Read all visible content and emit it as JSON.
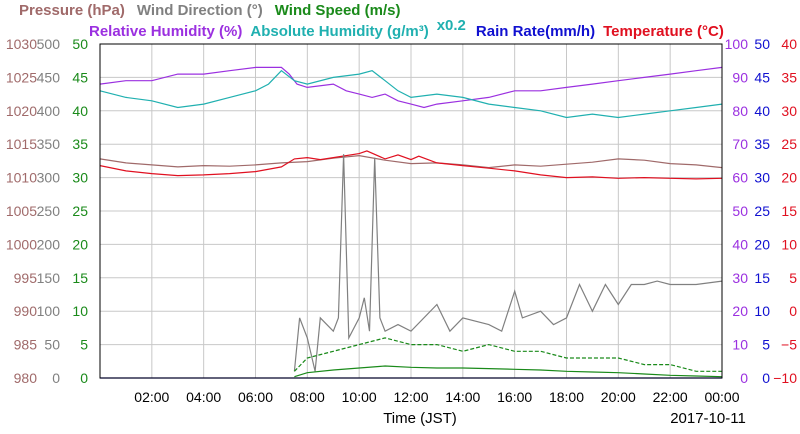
{
  "chart_data": {
    "type": "line",
    "date": "2017-10-11",
    "xlabel": "Time (JST)",
    "x_range_hours": [
      0,
      24
    ],
    "x_ticks": [
      "02:00",
      "04:00",
      "06:00",
      "08:00",
      "10:00",
      "12:00",
      "14:00",
      "16:00",
      "18:00",
      "20:00",
      "22:00",
      "00:00"
    ],
    "grid": true,
    "legend_row1": [
      {
        "text": "Pressure (hPa)",
        "color": "#a06a6a"
      },
      {
        "text": "Wind Direction (°)",
        "color": "#808080"
      },
      {
        "text": "Wind Speed (m/s)",
        "color": "#1a8a1a"
      }
    ],
    "legend_row2": [
      {
        "text": "Relative Humidity (%)",
        "color": "#9b30e0"
      },
      {
        "text": "Absolute Humidity (g/m³)",
        "color": "#20b0b0"
      },
      {
        "text": "x0.2",
        "color": "#20b0b0"
      },
      {
        "text": "Rain Rate(mm/h)",
        "color": "#1010d0"
      },
      {
        "text": "Temperature (°C)",
        "color": "#e01020"
      }
    ],
    "axes": {
      "pressure": {
        "color": "#a06a6a",
        "range": [
          980,
          1030
        ],
        "ticks": [
          "1030",
          "1025",
          "1020",
          "1015",
          "1010",
          "1005",
          "1000",
          "995",
          "990",
          "985",
          "980"
        ]
      },
      "wind_direction": {
        "color": "#808080",
        "range": [
          0,
          500
        ],
        "ticks": [
          "500",
          "450",
          "400",
          "350",
          "300",
          "250",
          "200",
          "150",
          "100",
          "50",
          "0"
        ]
      },
      "wind_speed": {
        "color": "#1a8a1a",
        "range": [
          0,
          50
        ],
        "ticks": [
          "50",
          "45",
          "40",
          "35",
          "30",
          "25",
          "20",
          "15",
          "10",
          "5",
          "0"
        ]
      },
      "relative_humidity": {
        "color": "#9b30e0",
        "range": [
          0,
          100
        ],
        "ticks": [
          "100",
          "90",
          "80",
          "70",
          "60",
          "50",
          "40",
          "30",
          "20",
          "10",
          "0"
        ]
      },
      "rain_rate": {
        "color": "#1010d0",
        "range": [
          0,
          50
        ],
        "ticks": [
          "50",
          "45",
          "40",
          "35",
          "30",
          "25",
          "20",
          "15",
          "10",
          "5",
          "0"
        ]
      },
      "temperature": {
        "color": "#e01020",
        "range": [
          -10,
          40
        ],
        "ticks": [
          "40",
          "35",
          "30",
          "25",
          "20",
          "15",
          "10",
          "5",
          "0",
          "−5",
          "−10"
        ]
      }
    },
    "series": [
      {
        "key": "pressure",
        "axis": "pressure",
        "color": "#a06a6a",
        "points": [
          [
            0,
            1012.8
          ],
          [
            1,
            1012.2
          ],
          [
            2,
            1011.9
          ],
          [
            3,
            1011.6
          ],
          [
            4,
            1011.8
          ],
          [
            5,
            1011.7
          ],
          [
            6,
            1011.9
          ],
          [
            7,
            1012.2
          ],
          [
            8,
            1012.4
          ],
          [
            9,
            1012.9
          ],
          [
            10,
            1013.3
          ],
          [
            11,
            1012.6
          ],
          [
            12,
            1012.1
          ],
          [
            13,
            1012.2
          ],
          [
            14,
            1011.9
          ],
          [
            15,
            1011.5
          ],
          [
            16,
            1011.9
          ],
          [
            17,
            1011.7
          ],
          [
            18,
            1012.0
          ],
          [
            19,
            1012.3
          ],
          [
            20,
            1012.8
          ],
          [
            21,
            1012.6
          ],
          [
            22,
            1012.1
          ],
          [
            23,
            1011.9
          ],
          [
            24,
            1011.5
          ]
        ]
      },
      {
        "key": "temperature",
        "axis": "temperature",
        "color": "#e01020",
        "points": [
          [
            0,
            21.8
          ],
          [
            1,
            21.0
          ],
          [
            2,
            20.6
          ],
          [
            3,
            20.3
          ],
          [
            4,
            20.4
          ],
          [
            5,
            20.6
          ],
          [
            6,
            20.9
          ],
          [
            7,
            21.6
          ],
          [
            7.5,
            22.8
          ],
          [
            8,
            23.0
          ],
          [
            8.5,
            22.7
          ],
          [
            9,
            23.0
          ],
          [
            10,
            23.6
          ],
          [
            10.3,
            24.0
          ],
          [
            11,
            22.8
          ],
          [
            11.5,
            23.4
          ],
          [
            12,
            22.7
          ],
          [
            12.3,
            23.2
          ],
          [
            13,
            22.2
          ],
          [
            14,
            21.8
          ],
          [
            15,
            21.4
          ],
          [
            16,
            21.0
          ],
          [
            17,
            20.4
          ],
          [
            18,
            20.0
          ],
          [
            19,
            20.1
          ],
          [
            20,
            19.9
          ],
          [
            21,
            20.0
          ],
          [
            22,
            19.9
          ],
          [
            23,
            19.8
          ],
          [
            24,
            19.9
          ]
        ]
      },
      {
        "key": "relative_humidity",
        "axis": "relative_humidity",
        "color": "#9b30e0",
        "points": [
          [
            0,
            88
          ],
          [
            1,
            89
          ],
          [
            2,
            89
          ],
          [
            3,
            91
          ],
          [
            4,
            91
          ],
          [
            5,
            92
          ],
          [
            6,
            93
          ],
          [
            7,
            93
          ],
          [
            7.3,
            91
          ],
          [
            7.6,
            88
          ],
          [
            8,
            87
          ],
          [
            9,
            88
          ],
          [
            9.5,
            86
          ],
          [
            10,
            85
          ],
          [
            10.5,
            84
          ],
          [
            11,
            85
          ],
          [
            11.5,
            83
          ],
          [
            12,
            82
          ],
          [
            12.5,
            81
          ],
          [
            13,
            82
          ],
          [
            14,
            83
          ],
          [
            15,
            84
          ],
          [
            16,
            86
          ],
          [
            17,
            86
          ],
          [
            18,
            87
          ],
          [
            19,
            88
          ],
          [
            20,
            89
          ],
          [
            21,
            90
          ],
          [
            22,
            91
          ],
          [
            23,
            92
          ],
          [
            24,
            93
          ]
        ]
      },
      {
        "key": "absolute_humidity",
        "axis": "relative_humidity",
        "color": "#20b0b0",
        "points": [
          [
            0,
            86
          ],
          [
            1,
            84
          ],
          [
            2,
            83
          ],
          [
            3,
            81
          ],
          [
            4,
            82
          ],
          [
            5,
            84
          ],
          [
            6,
            86
          ],
          [
            6.5,
            88
          ],
          [
            7,
            92
          ],
          [
            7.5,
            89
          ],
          [
            8,
            88
          ],
          [
            9,
            90
          ],
          [
            10,
            91
          ],
          [
            10.5,
            92
          ],
          [
            11,
            89
          ],
          [
            11.5,
            86
          ],
          [
            12,
            84
          ],
          [
            13,
            85
          ],
          [
            14,
            84
          ],
          [
            15,
            82
          ],
          [
            16,
            81
          ],
          [
            17,
            80
          ],
          [
            18,
            78
          ],
          [
            19,
            79
          ],
          [
            20,
            78
          ],
          [
            21,
            79
          ],
          [
            22,
            80
          ],
          [
            23,
            81
          ],
          [
            24,
            82
          ]
        ]
      },
      {
        "key": "wind_direction",
        "axis": "wind_direction",
        "color": "#808080",
        "points": [
          [
            7.5,
            10
          ],
          [
            7.7,
            90
          ],
          [
            8,
            60
          ],
          [
            8.3,
            10
          ],
          [
            8.5,
            90
          ],
          [
            9,
            70
          ],
          [
            9.2,
            90
          ],
          [
            9.4,
            335
          ],
          [
            9.6,
            60
          ],
          [
            10,
            90
          ],
          [
            10.2,
            120
          ],
          [
            10.4,
            70
          ],
          [
            10.6,
            330
          ],
          [
            10.8,
            90
          ],
          [
            11,
            70
          ],
          [
            11.5,
            80
          ],
          [
            12,
            70
          ],
          [
            13,
            110
          ],
          [
            13.5,
            70
          ],
          [
            14,
            90
          ],
          [
            15,
            80
          ],
          [
            15.5,
            70
          ],
          [
            16,
            130
          ],
          [
            16.3,
            90
          ],
          [
            17,
            100
          ],
          [
            17.5,
            80
          ],
          [
            18,
            90
          ],
          [
            18.5,
            140
          ],
          [
            19,
            100
          ],
          [
            19.5,
            140
          ],
          [
            20,
            110
          ],
          [
            20.5,
            140
          ],
          [
            21,
            140
          ],
          [
            21.5,
            145
          ],
          [
            22,
            140
          ],
          [
            23,
            140
          ],
          [
            24,
            145
          ]
        ]
      },
      {
        "key": "wind_speed_gust",
        "axis": "wind_speed",
        "color": "#1a8a1a",
        "points": [
          [
            7.5,
            1
          ],
          [
            8,
            3
          ],
          [
            9,
            4
          ],
          [
            10,
            5
          ],
          [
            11,
            6
          ],
          [
            12,
            5
          ],
          [
            13,
            5
          ],
          [
            14,
            4
          ],
          [
            15,
            5
          ],
          [
            16,
            4
          ],
          [
            17,
            4
          ],
          [
            18,
            3
          ],
          [
            19,
            3
          ],
          [
            20,
            3
          ],
          [
            21,
            2
          ],
          [
            22,
            2
          ],
          [
            23,
            1
          ],
          [
            24,
            1
          ]
        ]
      },
      {
        "key": "wind_speed",
        "axis": "wind_speed",
        "color": "#1a8a1a",
        "points": [
          [
            7.5,
            0.2
          ],
          [
            8,
            0.8
          ],
          [
            9,
            1.2
          ],
          [
            10,
            1.5
          ],
          [
            11,
            1.8
          ],
          [
            12,
            1.6
          ],
          [
            13,
            1.5
          ],
          [
            14,
            1.5
          ],
          [
            15,
            1.4
          ],
          [
            16,
            1.3
          ],
          [
            17,
            1.2
          ],
          [
            18,
            1.0
          ],
          [
            19,
            0.9
          ],
          [
            20,
            0.8
          ],
          [
            21,
            0.6
          ],
          [
            22,
            0.4
          ],
          [
            23,
            0.3
          ],
          [
            24,
            0.2
          ]
        ]
      },
      {
        "key": "rain_rate",
        "axis": "rain_rate",
        "color": "#1010d0",
        "points": [
          [
            0,
            0
          ],
          [
            24,
            0
          ]
        ]
      }
    ]
  }
}
